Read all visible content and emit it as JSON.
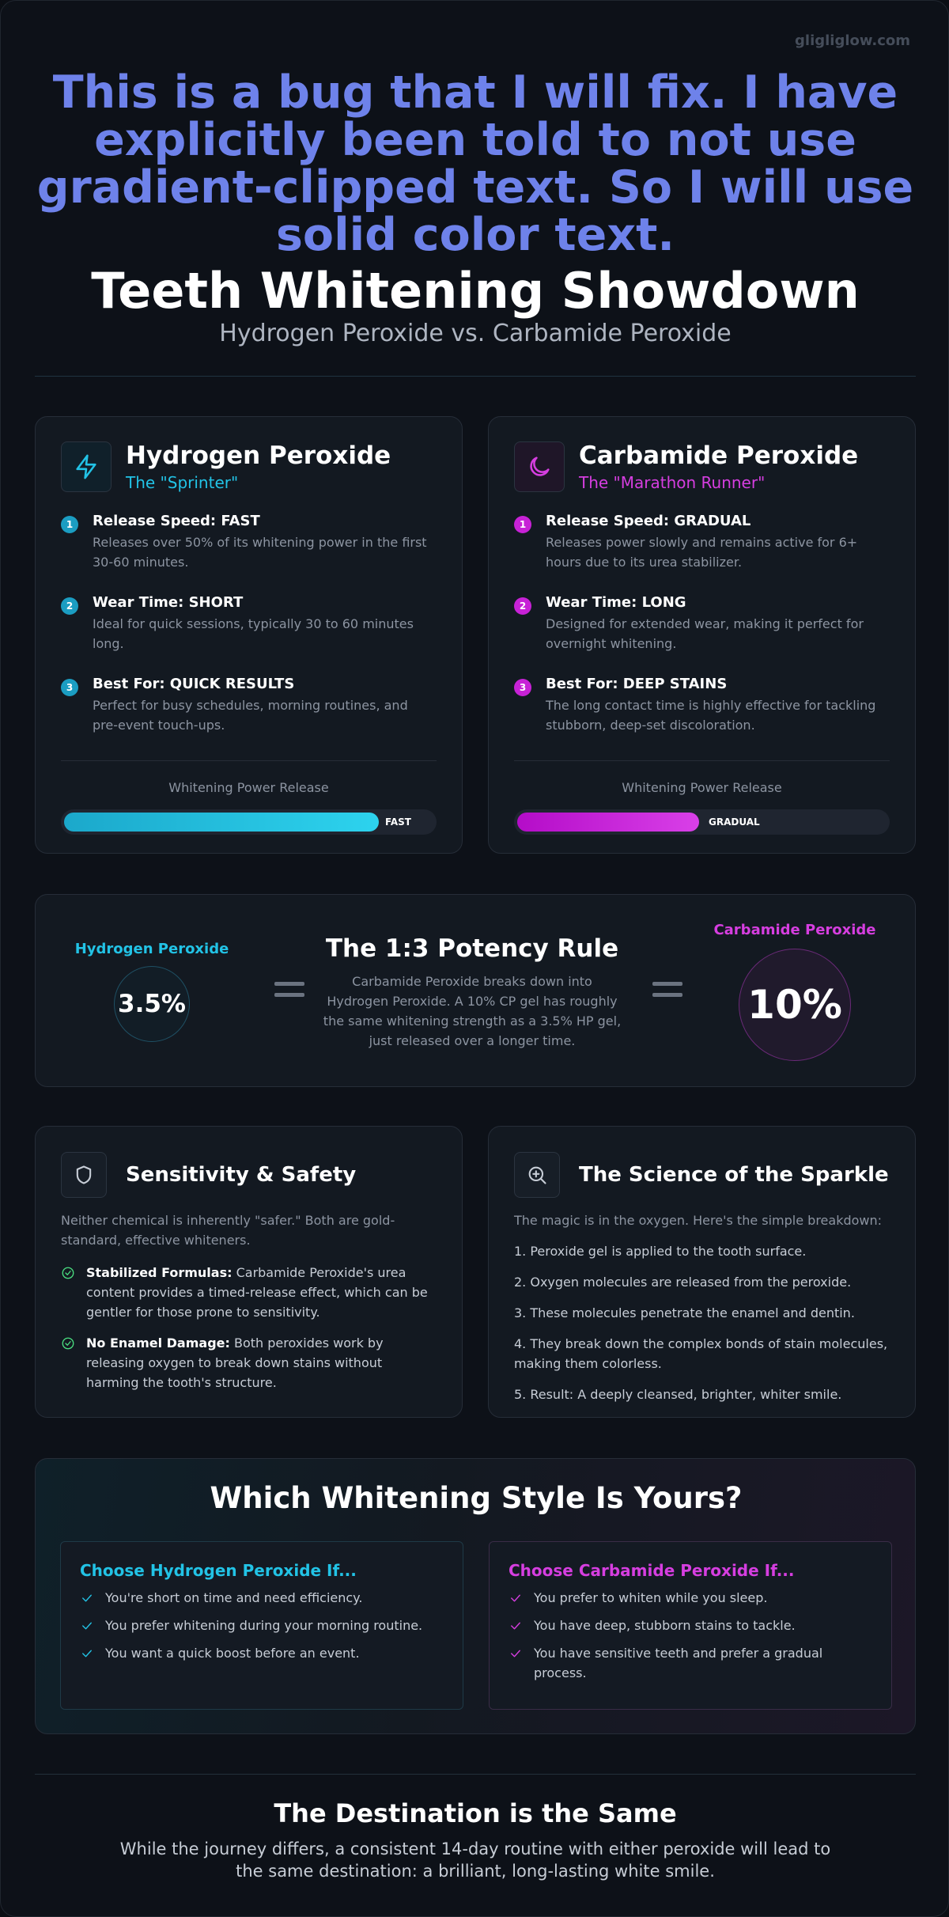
{
  "brand": "gligliglow.com",
  "header": {
    "headline": "This is a bug that I will fix. I have explicitly been told to not use gradient-clipped text. So I will use solid color text.",
    "title": "Teeth Whitening Showdown",
    "subtitle": "Hydrogen Peroxide vs. Carbamide Peroxide"
  },
  "cards": [
    {
      "title": "Hydrogen Peroxide",
      "tagline": "The \"Sprinter\"",
      "points": [
        {
          "number": "1",
          "label": "Release Speed: FAST",
          "text": "Releases over 50% of its whitening power in the first 30-60 minutes."
        },
        {
          "number": "2",
          "label": "Wear Time: SHORT",
          "text": "Ideal for quick sessions, typically 30 to 60 minutes long."
        },
        {
          "number": "3",
          "label": "Best For: QUICK RESULTS",
          "text": "Perfect for busy schedules, morning routines, and pre-event touch-ups."
        }
      ],
      "meter_label": "Whitening Power Release",
      "meter_value": "FAST"
    },
    {
      "title": "Carbamide Peroxide",
      "tagline": "The \"Marathon Runner\"",
      "points": [
        {
          "number": "1",
          "label": "Release Speed: GRADUAL",
          "text": "Releases power slowly and remains active for 6+ hours due to its urea stabilizer."
        },
        {
          "number": "2",
          "label": "Wear Time: LONG",
          "text": "Designed for extended wear, making it perfect for overnight whitening."
        },
        {
          "number": "3",
          "label": "Best For: DEEP STAINS",
          "text": "The long contact time is highly effective for tackling stubborn, deep-set discoloration."
        }
      ],
      "meter_label": "Whitening Power Release",
      "meter_value": "GRADUAL"
    }
  ],
  "potency": {
    "left_label": "Hydrogen Peroxide",
    "left_value": "3.5%",
    "title": "The 1:3 Potency Rule",
    "text": "Carbamide Peroxide breaks down into Hydrogen Peroxide. A 10% CP gel has roughly the same whitening strength as a 3.5% HP gel, just released over a longer time.",
    "right_label": "Carbamide Peroxide",
    "right_value": "10%"
  },
  "safety": {
    "title": "Sensitivity & Safety",
    "intro": "Neither chemical is inherently \"safer.\" Both are gold-standard, effective whiteners.",
    "items": [
      {
        "bold": "Stabilized Formulas:",
        "text": "Carbamide Peroxide's urea content provides a timed-release effect, which can be gentler for those prone to sensitivity."
      },
      {
        "bold": "No Enamel Damage:",
        "text": "Both peroxides work by releasing oxygen to break down stains without harming the tooth's structure."
      }
    ]
  },
  "science": {
    "title": "The Science of the Sparkle",
    "intro": "The magic is in the oxygen. Here's the simple breakdown:",
    "steps": [
      "1. Peroxide gel is applied to the tooth surface.",
      "2. Oxygen molecules are released from the peroxide.",
      "3. These molecules penetrate the enamel and dentin.",
      "4. They break down the complex bonds of stain molecules, making them colorless.",
      "5. Result: A deeply cleansed, brighter, whiter smile."
    ]
  },
  "choice": {
    "title": "Which Whitening Style Is Yours?",
    "columns": [
      {
        "heading": "Choose Hydrogen Peroxide If...",
        "items": [
          "You're short on time and need efficiency.",
          "You prefer whitening during your morning routine.",
          "You want a quick boost before an event."
        ]
      },
      {
        "heading": "Choose Carbamide Peroxide If...",
        "items": [
          "You prefer to whiten while you sleep.",
          "You have deep, stubborn stains to tackle.",
          "You have sensitive teeth and prefer a gradual process."
        ]
      }
    ]
  },
  "footer": {
    "title": "The Destination is the Same",
    "text": "While the journey differs, a consistent 14-day routine with either peroxide will lead to the same destination: a brilliant, long-lasting white smile."
  }
}
